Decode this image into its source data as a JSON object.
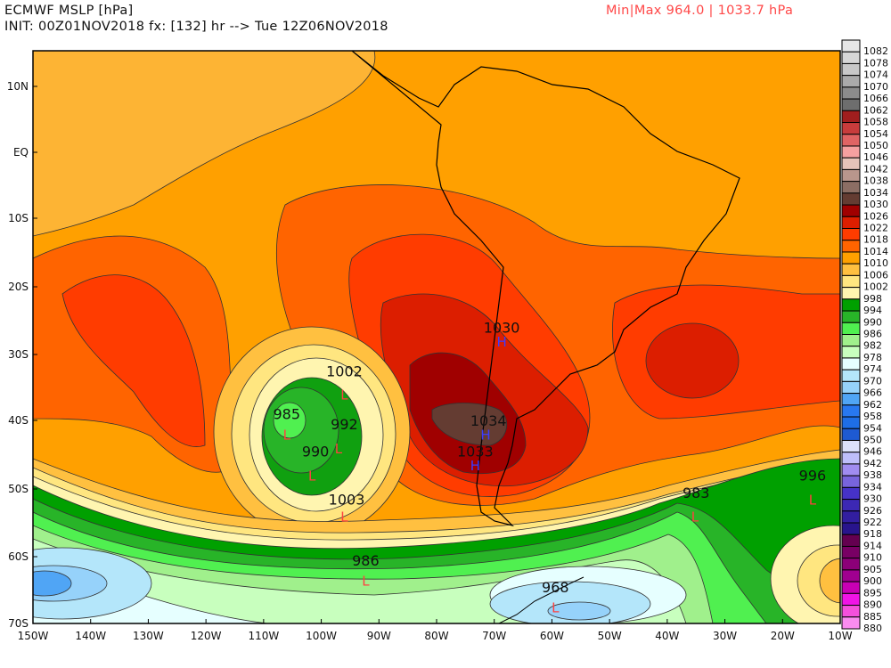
{
  "header": {
    "title": "ECMWF MSLP [hPa]",
    "init": "INIT: 00Z01NOV2018 fx: [132] hr --> Tue 12Z06NOV2018",
    "minmax": "Min|Max 964.0 | 1033.7 hPa"
  },
  "map": {
    "lat_ticks": [
      "10N",
      "EQ",
      "10S",
      "20S",
      "30S",
      "40S",
      "50S",
      "60S",
      "70S"
    ],
    "lon_ticks": [
      "150W",
      "140W",
      "130W",
      "120W",
      "110W",
      "100W",
      "90W",
      "80W",
      "70W",
      "60W",
      "50W",
      "40W",
      "30W",
      "20W",
      "10W"
    ],
    "contour_labels": [
      {
        "text": "1002",
        "lon": -96,
        "lat": -32.5,
        "small": true
      },
      {
        "text": "985",
        "lon": -106,
        "lat": -39
      },
      {
        "text": "992",
        "lon": -96,
        "lat": -40.5
      },
      {
        "text": "990",
        "lon": -101,
        "lat": -44.5
      },
      {
        "text": "1003",
        "lon": -95.6,
        "lat": -51.5,
        "small": true
      },
      {
        "text": "1030",
        "lon": -68.7,
        "lat": -26
      },
      {
        "text": "1034",
        "lon": -71,
        "lat": -40
      },
      {
        "text": "1033",
        "lon": -73.3,
        "lat": -44.5
      },
      {
        "text": "983",
        "lon": -35,
        "lat": -50.5
      },
      {
        "text": "996",
        "lon": -14.8,
        "lat": -48
      },
      {
        "text": "986",
        "lon": -92.3,
        "lat": -60.5
      },
      {
        "text": "968",
        "lon": -59.4,
        "lat": -64.5
      }
    ],
    "highs": [
      {
        "label": "H",
        "lon": -68.7,
        "lat": -28
      },
      {
        "label": "H",
        "lon": -71.5,
        "lat": -42
      },
      {
        "label": "H",
        "lon": -73.3,
        "lat": -46.5
      }
    ],
    "lows": [
      {
        "label": "L",
        "lon": -96,
        "lat": -36
      },
      {
        "label": "L",
        "lon": -106,
        "lat": -42
      },
      {
        "label": "L",
        "lon": -97,
        "lat": -44
      },
      {
        "label": "L",
        "lon": -101.6,
        "lat": -48
      },
      {
        "label": "L",
        "lon": -96,
        "lat": -54
      },
      {
        "label": "L",
        "lon": -92.3,
        "lat": -63.5
      },
      {
        "label": "L",
        "lon": -59.4,
        "lat": -67.5
      },
      {
        "label": "L",
        "lon": -35.2,
        "lat": -54
      },
      {
        "label": "L",
        "lon": -14.8,
        "lat": -51.5
      }
    ],
    "high_color": "#3c3cff",
    "low_color": "#ff4040"
  },
  "colorbar": {
    "levels": [
      "1082",
      "1078",
      "1074",
      "1070",
      "1066",
      "1062",
      "1058",
      "1054",
      "1050",
      "1046",
      "1042",
      "1038",
      "1034",
      "1030",
      "1026",
      "1022",
      "1018",
      "1014",
      "1010",
      "1006",
      "1002",
      "998",
      "994",
      "990",
      "986",
      "982",
      "978",
      "974",
      "970",
      "966",
      "962",
      "958",
      "954",
      "950",
      "946",
      "942",
      "938",
      "934",
      "930",
      "926",
      "922",
      "918",
      "914",
      "910",
      "905",
      "900",
      "895",
      "890",
      "885",
      "880"
    ],
    "colors": [
      "#e6e6e6",
      "#d6d6d6",
      "#c8c8c8",
      "#aaaaaa",
      "#8c8c8c",
      "#6e6e6e",
      "#a01e1e",
      "#c83c3c",
      "#e06464",
      "#f5a0a0",
      "#e6c3b9",
      "#b9968c",
      "#8c6e64",
      "#643c32",
      "#a00000",
      "#dc1e00",
      "#ff3c00",
      "#ff6400",
      "#ffa000",
      "#ffc040",
      "#ffe680",
      "#fff5b0",
      "#00a000",
      "#28b428",
      "#50f050",
      "#a0f08c",
      "#c8ffbe",
      "#e6ffff",
      "#b4e6fa",
      "#96d2fa",
      "#50a5f5",
      "#2878f0",
      "#1e6ee6",
      "#1e5ad2",
      "#dce1fa",
      "#bebefa",
      "#a08cf0",
      "#7864dc",
      "#4632c8",
      "#3c28b4",
      "#321ea0",
      "#28148c",
      "#640050",
      "#780064",
      "#8c0078",
      "#a00090",
      "#c800b4",
      "#f014e6",
      "#f550dc",
      "#fa8cf0"
    ]
  }
}
